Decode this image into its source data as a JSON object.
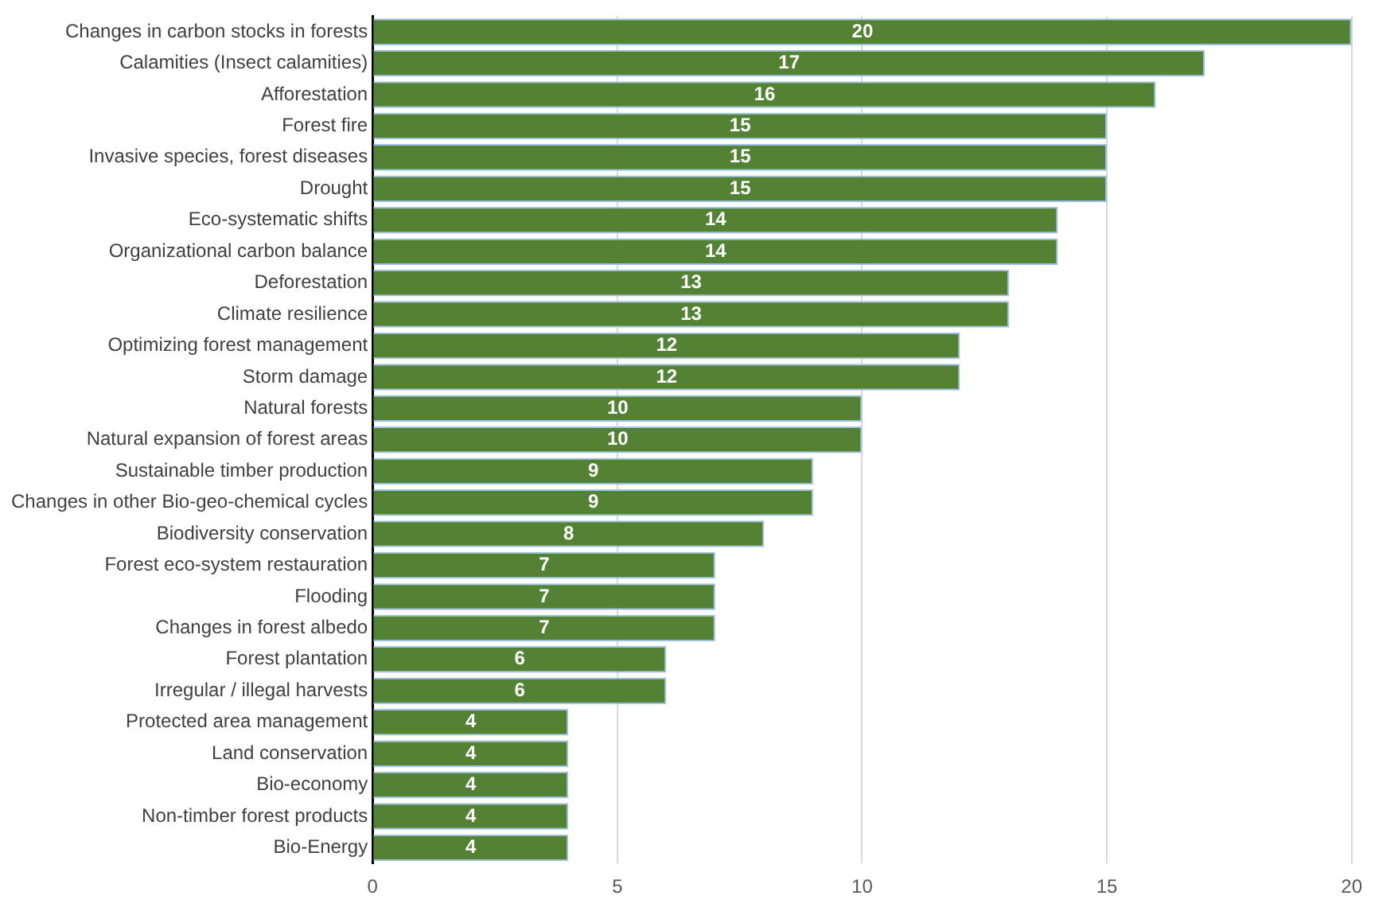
{
  "chart_data": {
    "type": "bar",
    "orientation": "horizontal",
    "categories": [
      "Changes in carbon stocks in forests",
      "Calamities (Insect calamities)",
      "Afforestation",
      "Forest fire",
      "Invasive species, forest diseases",
      "Drought",
      "Eco-systematic shifts",
      "Organizational carbon balance",
      "Deforestation",
      "Climate resilience",
      "Optimizing forest management",
      "Storm damage",
      "Natural forests",
      "Natural expansion of forest areas",
      "Sustainable timber production",
      "Changes in other Bio-geo-chemical cycles",
      "Biodiversity conservation",
      "Forest eco-system restauration",
      "Flooding",
      "Changes in forest albedo",
      "Forest plantation",
      "Irregular / illegal harvests",
      "Protected area management",
      "Land conservation",
      "Bio-economy",
      "Non-timber forest products",
      "Bio-Energy"
    ],
    "values": [
      20,
      17,
      16,
      15,
      15,
      15,
      14,
      14,
      13,
      13,
      12,
      12,
      10,
      10,
      9,
      9,
      8,
      7,
      7,
      7,
      6,
      6,
      4,
      4,
      4,
      4,
      4
    ],
    "color": "#548235",
    "xlim": [
      0,
      20
    ],
    "xticks": [
      0,
      5,
      10,
      15,
      20
    ],
    "grid": "x",
    "data_labels": true
  }
}
